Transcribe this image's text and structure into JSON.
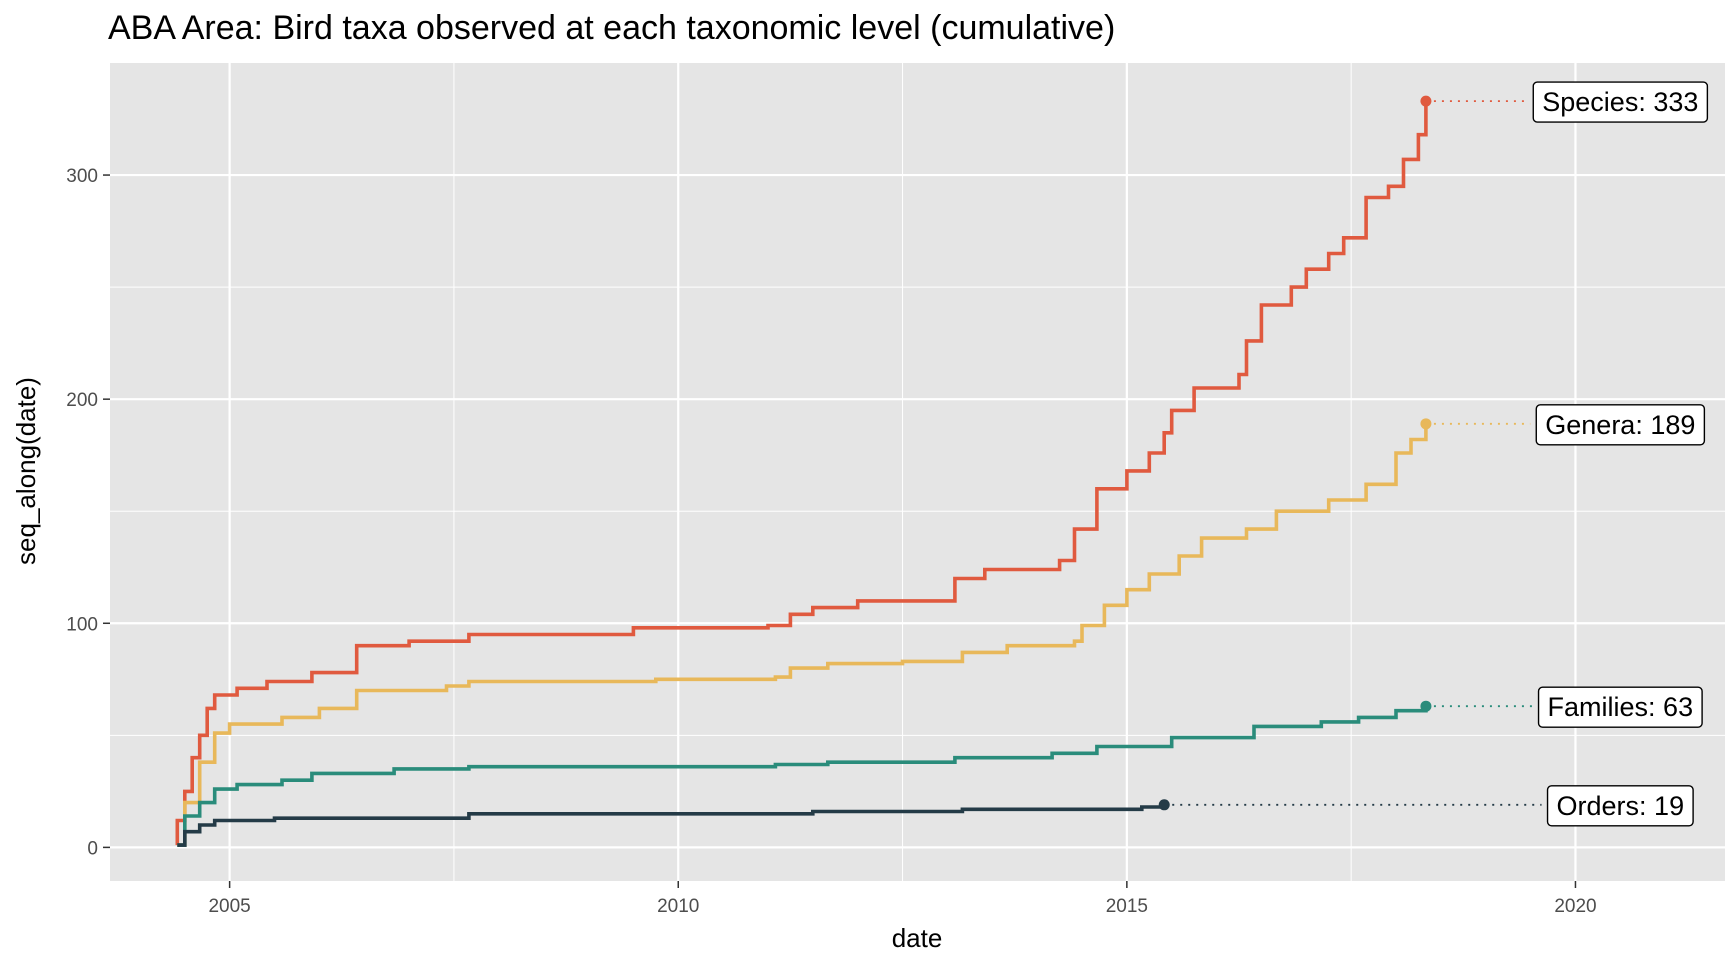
{
  "chart_data": {
    "type": "line",
    "title": "ABA Area: Bird taxa observed at each taxonomic level (cumulative)",
    "xlabel": "date",
    "ylabel": "seq_along(date)",
    "x_ticks": [
      "2005",
      "2010",
      "2015",
      "2020"
    ],
    "y_ticks": [
      "0",
      "100",
      "200",
      "300"
    ],
    "xlim": [
      "2003-09",
      "2021-09"
    ],
    "ylim": [
      -15,
      350
    ],
    "grid": true,
    "legend": "none",
    "colors": {
      "panel_background": "#e5e5e5",
      "gridline": "#ffffff",
      "species": "#e05a3f",
      "genera": "#e8b85a",
      "families": "#2a8c7b",
      "orders": "#243b47"
    },
    "series": [
      {
        "label": "Species: 333",
        "end_date": "2018-05",
        "end_value": 333,
        "color": "#e05a3f",
        "points": [
          [
            "2004-06",
            1
          ],
          [
            "2004-06",
            12
          ],
          [
            "2004-07",
            25
          ],
          [
            "2004-08",
            40
          ],
          [
            "2004-09",
            50
          ],
          [
            "2004-10",
            62
          ],
          [
            "2004-11",
            68
          ],
          [
            "2005-02",
            71
          ],
          [
            "2005-06",
            74
          ],
          [
            "2005-12",
            78
          ],
          [
            "2006-06",
            82
          ],
          [
            "2006-06",
            90
          ],
          [
            "2007-01",
            92
          ],
          [
            "2007-09",
            95
          ],
          [
            "2009-07",
            98
          ],
          [
            "2011-01",
            99
          ],
          [
            "2011-04",
            104
          ],
          [
            "2011-07",
            107
          ],
          [
            "2012-01",
            110
          ],
          [
            "2013-02",
            110
          ],
          [
            "2013-02",
            120
          ],
          [
            "2013-06",
            124
          ],
          [
            "2014-04",
            128
          ],
          [
            "2014-06",
            142
          ],
          [
            "2014-09",
            160
          ],
          [
            "2015-01",
            168
          ],
          [
            "2015-04",
            176
          ],
          [
            "2015-06",
            185
          ],
          [
            "2015-07",
            195
          ],
          [
            "2015-10",
            205
          ],
          [
            "2016-04",
            211
          ],
          [
            "2016-05",
            226
          ],
          [
            "2016-07",
            242
          ],
          [
            "2016-11",
            250
          ],
          [
            "2017-01",
            258
          ],
          [
            "2017-04",
            265
          ],
          [
            "2017-06",
            272
          ],
          [
            "2017-09",
            290
          ],
          [
            "2017-12",
            295
          ],
          [
            "2018-02",
            307
          ],
          [
            "2018-04",
            318
          ],
          [
            "2018-05",
            333
          ]
        ]
      },
      {
        "label": "Genera: 189",
        "end_date": "2018-05",
        "end_value": 189,
        "color": "#e8b85a",
        "points": [
          [
            "2004-06",
            1
          ],
          [
            "2004-07",
            20
          ],
          [
            "2004-09",
            38
          ],
          [
            "2004-11",
            51
          ],
          [
            "2005-01",
            55
          ],
          [
            "2005-08",
            58
          ],
          [
            "2006-01",
            62
          ],
          [
            "2006-06",
            70
          ],
          [
            "2007-06",
            72
          ],
          [
            "2007-09",
            74
          ],
          [
            "2009-10",
            75
          ],
          [
            "2011-02",
            76
          ],
          [
            "2011-04",
            80
          ],
          [
            "2011-09",
            82
          ],
          [
            "2012-07",
            83
          ],
          [
            "2013-03",
            87
          ],
          [
            "2013-09",
            90
          ],
          [
            "2014-06",
            92
          ],
          [
            "2014-07",
            99
          ],
          [
            "2014-10",
            108
          ],
          [
            "2015-01",
            115
          ],
          [
            "2015-04",
            122
          ],
          [
            "2015-08",
            130
          ],
          [
            "2015-11",
            138
          ],
          [
            "2016-05",
            142
          ],
          [
            "2016-09",
            150
          ],
          [
            "2017-04",
            155
          ],
          [
            "2017-09",
            162
          ],
          [
            "2018-01",
            176
          ],
          [
            "2018-03",
            182
          ],
          [
            "2018-05",
            189
          ]
        ]
      },
      {
        "label": "Families: 63",
        "end_date": "2018-05",
        "end_value": 63,
        "color": "#2a8c7b",
        "points": [
          [
            "2004-06",
            1
          ],
          [
            "2004-07",
            14
          ],
          [
            "2004-09",
            20
          ],
          [
            "2004-11",
            26
          ],
          [
            "2005-02",
            28
          ],
          [
            "2005-08",
            30
          ],
          [
            "2005-12",
            33
          ],
          [
            "2006-11",
            35
          ],
          [
            "2007-09",
            36
          ],
          [
            "2011-02",
            37
          ],
          [
            "2011-09",
            38
          ],
          [
            "2013-02",
            40
          ],
          [
            "2014-03",
            42
          ],
          [
            "2014-09",
            45
          ],
          [
            "2015-07",
            49
          ],
          [
            "2016-06",
            54
          ],
          [
            "2017-03",
            56
          ],
          [
            "2017-08",
            58
          ],
          [
            "2018-01",
            61
          ],
          [
            "2018-05",
            63
          ]
        ]
      },
      {
        "label": "Orders: 19",
        "end_date": "2015-06",
        "end_value": 19,
        "color": "#243b47",
        "points": [
          [
            "2004-06",
            1
          ],
          [
            "2004-07",
            7
          ],
          [
            "2004-09",
            10
          ],
          [
            "2004-11",
            12
          ],
          [
            "2005-07",
            13
          ],
          [
            "2007-09",
            15
          ],
          [
            "2011-07",
            16
          ],
          [
            "2013-03",
            17
          ],
          [
            "2015-03",
            18
          ],
          [
            "2015-06",
            19
          ]
        ]
      }
    ]
  }
}
